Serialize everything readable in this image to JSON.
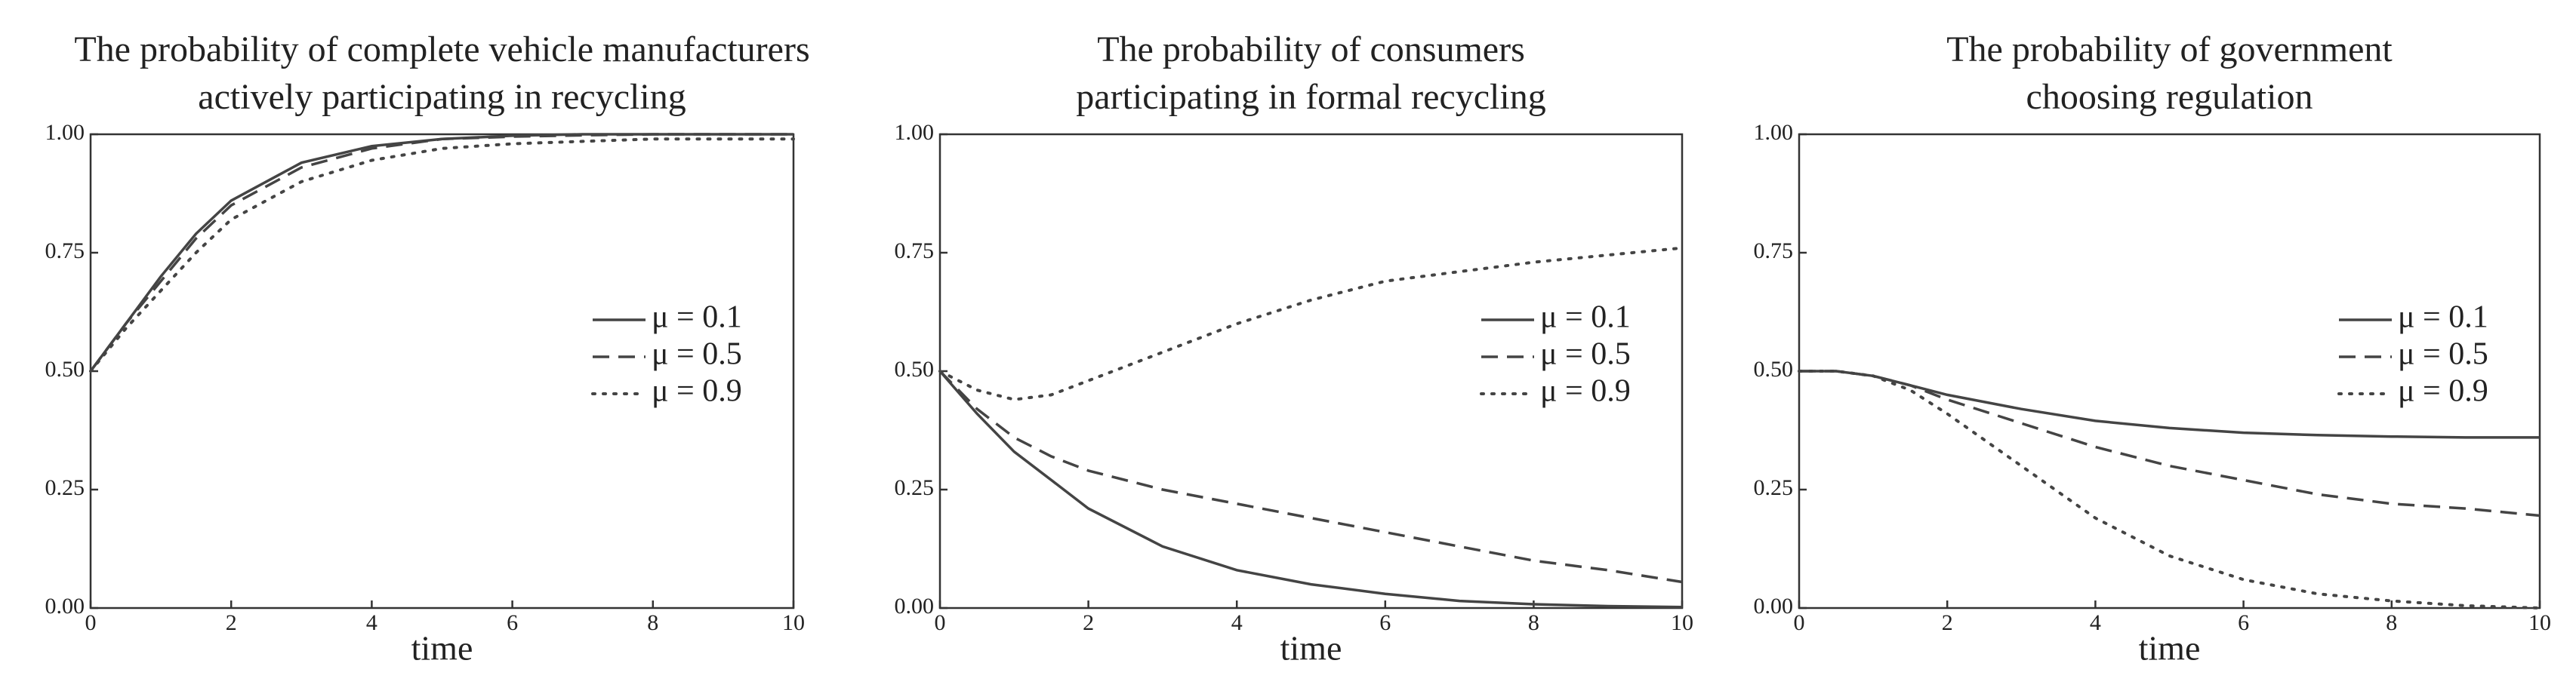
{
  "chart_data": [
    {
      "type": "line",
      "title": [
        "The probability of complete vehicle manufacturers",
        "actively participating in recycling"
      ],
      "x_label": "time",
      "x": [
        0,
        0.5,
        1,
        1.5,
        2,
        3,
        4,
        5,
        6,
        7,
        8,
        9,
        10
      ],
      "series": [
        {
          "name": "μ = 0.1",
          "color": "#444444",
          "dash": "solid",
          "values": [
            0.5,
            0.6,
            0.7,
            0.79,
            0.86,
            0.94,
            0.975,
            0.99,
            0.997,
            1.0,
            1.0,
            1.0,
            1.0
          ]
        },
        {
          "name": "μ = 0.5",
          "color": "#444444",
          "dash": "dashed",
          "values": [
            0.5,
            0.6,
            0.69,
            0.78,
            0.85,
            0.93,
            0.97,
            0.99,
            0.995,
            0.998,
            1.0,
            1.0,
            1.0
          ]
        },
        {
          "name": "μ = 0.9",
          "color": "#444444",
          "dash": "dotted",
          "values": [
            0.5,
            0.59,
            0.67,
            0.75,
            0.82,
            0.9,
            0.945,
            0.97,
            0.98,
            0.985,
            0.99,
            0.99,
            0.99
          ]
        }
      ],
      "xlim": [
        0,
        10
      ],
      "xticks": [
        0,
        2,
        4,
        6,
        8,
        10
      ],
      "ylim": [
        0,
        1
      ],
      "yticks": [
        {
          "value": 0,
          "label": "0.00"
        },
        {
          "value": 0.25,
          "label": "0.25"
        },
        {
          "value": 0.5,
          "label": "0.50"
        },
        {
          "value": 0.75,
          "label": "0.75"
        },
        {
          "value": 1,
          "label": "1.00"
        }
      ],
      "legend": "right",
      "grid": false
    },
    {
      "type": "line",
      "title": [
        "The probability of consumers",
        "participating in formal recycling"
      ],
      "x_label": "time",
      "x": [
        0,
        0.5,
        1,
        1.5,
        2,
        3,
        4,
        5,
        6,
        7,
        8,
        9,
        10
      ],
      "series": [
        {
          "name": "μ = 0.1",
          "color": "#444444",
          "dash": "solid",
          "values": [
            0.5,
            0.41,
            0.33,
            0.27,
            0.21,
            0.13,
            0.08,
            0.05,
            0.03,
            0.015,
            0.008,
            0.004,
            0.002
          ]
        },
        {
          "name": "μ = 0.5",
          "color": "#444444",
          "dash": "dashed",
          "values": [
            0.5,
            0.42,
            0.36,
            0.32,
            0.29,
            0.25,
            0.22,
            0.19,
            0.16,
            0.13,
            0.1,
            0.08,
            0.055
          ]
        },
        {
          "name": "μ = 0.9",
          "color": "#444444",
          "dash": "dotted",
          "values": [
            0.5,
            0.46,
            0.44,
            0.45,
            0.48,
            0.54,
            0.6,
            0.65,
            0.69,
            0.71,
            0.73,
            0.745,
            0.76
          ]
        }
      ],
      "xlim": [
        0,
        10
      ],
      "xticks": [
        0,
        2,
        4,
        6,
        8,
        10
      ],
      "ylim": [
        0,
        1
      ],
      "yticks": [
        {
          "value": 0,
          "label": "0.00"
        },
        {
          "value": 0.25,
          "label": "0.25"
        },
        {
          "value": 0.5,
          "label": "0.50"
        },
        {
          "value": 0.75,
          "label": "0.75"
        },
        {
          "value": 1,
          "label": "1.00"
        }
      ],
      "legend": "right",
      "grid": false
    },
    {
      "type": "line",
      "title": [
        "The probability of government",
        "choosing regulation"
      ],
      "x_label": "time",
      "x": [
        0,
        0.5,
        1,
        1.5,
        2,
        3,
        4,
        5,
        6,
        7,
        8,
        9,
        10
      ],
      "series": [
        {
          "name": "μ = 0.1",
          "color": "#444444",
          "dash": "solid",
          "values": [
            0.5,
            0.5,
            0.49,
            0.47,
            0.45,
            0.42,
            0.395,
            0.38,
            0.37,
            0.365,
            0.362,
            0.36,
            0.36
          ]
        },
        {
          "name": "μ = 0.5",
          "color": "#444444",
          "dash": "dashed",
          "values": [
            0.5,
            0.5,
            0.49,
            0.47,
            0.44,
            0.39,
            0.34,
            0.3,
            0.27,
            0.24,
            0.22,
            0.21,
            0.195
          ]
        },
        {
          "name": "μ = 0.9",
          "color": "#444444",
          "dash": "dotted",
          "values": [
            0.5,
            0.5,
            0.49,
            0.46,
            0.41,
            0.3,
            0.19,
            0.11,
            0.06,
            0.03,
            0.015,
            0.005,
            0.0
          ]
        }
      ],
      "xlim": [
        0,
        10
      ],
      "xticks": [
        0,
        2,
        4,
        6,
        8,
        10
      ],
      "ylim": [
        0,
        1
      ],
      "yticks": [
        {
          "value": 0,
          "label": "0.00"
        },
        {
          "value": 0.25,
          "label": "0.25"
        },
        {
          "value": 0.5,
          "label": "0.50"
        },
        {
          "value": 0.75,
          "label": "0.75"
        },
        {
          "value": 1,
          "label": "1.00"
        }
      ],
      "legend": "right",
      "grid": false
    }
  ]
}
